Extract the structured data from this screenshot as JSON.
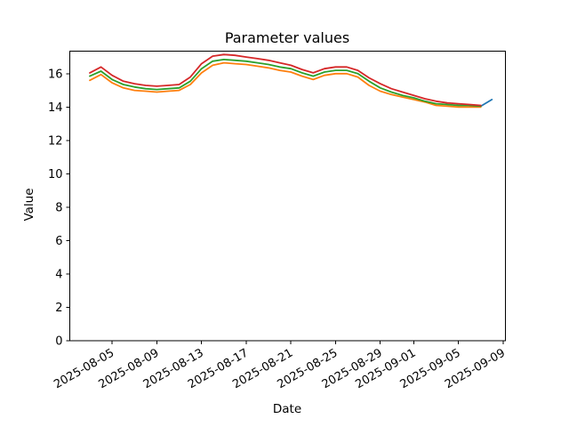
{
  "window": {
    "background": "#ffffff"
  },
  "chart_data": {
    "type": "line",
    "title": "Parameter values",
    "xlabel": "Date",
    "ylabel": "Value",
    "grid": false,
    "legend": null,
    "background_color": "#ffffff",
    "axis_color": "#000000",
    "x_axis": {
      "min": "2025-08-01T05:00:00Z",
      "max": "2025-09-09T05:00:00Z",
      "tick_labels": [
        "2025-08-05",
        "2025-08-09",
        "2025-08-13",
        "2025-08-17",
        "2025-08-21",
        "2025-08-25",
        "2025-08-29",
        "2025-09-01",
        "2025-09-05",
        "2025-09-09"
      ],
      "tick_label_rotation_deg": 30
    },
    "y_axis": {
      "min": 0,
      "max": 17.35,
      "ticks": [
        0,
        2,
        4,
        6,
        8,
        10,
        12,
        14,
        16
      ]
    },
    "x_main": [
      "2025-08-03",
      "2025-08-04",
      "2025-08-05",
      "2025-08-06",
      "2025-08-07",
      "2025-08-08",
      "2025-08-09",
      "2025-08-10",
      "2025-08-11",
      "2025-08-12",
      "2025-08-13",
      "2025-08-14",
      "2025-08-15",
      "2025-08-16",
      "2025-08-17",
      "2025-08-18",
      "2025-08-19",
      "2025-08-20",
      "2025-08-21",
      "2025-08-22",
      "2025-08-23",
      "2025-08-24",
      "2025-08-25",
      "2025-08-26",
      "2025-08-27",
      "2025-08-28",
      "2025-08-29",
      "2025-08-30",
      "2025-08-31",
      "2025-09-01",
      "2025-09-02",
      "2025-09-03",
      "2025-09-04",
      "2025-09-05",
      "2025-09-06",
      "2025-09-07"
    ],
    "series": [
      {
        "name": "blue",
        "color": "#1f77b4",
        "x": [
          "2025-09-06",
          "2025-09-07",
          "2025-09-08"
        ],
        "y": [
          14.1,
          14.05,
          14.45
        ]
      },
      {
        "name": "orange",
        "color": "#ff7f0e",
        "y": [
          15.6,
          15.95,
          15.45,
          15.15,
          15.0,
          14.95,
          14.9,
          14.95,
          15.0,
          15.35,
          16.05,
          16.5,
          16.65,
          16.6,
          16.55,
          16.45,
          16.35,
          16.2,
          16.1,
          15.85,
          15.65,
          15.9,
          16.0,
          16.0,
          15.8,
          15.3,
          14.95,
          14.75,
          14.6,
          14.45,
          14.3,
          14.1,
          14.05,
          14.0,
          14.0,
          14.0
        ]
      },
      {
        "name": "green",
        "color": "#2ca02c",
        "y": [
          15.85,
          16.15,
          15.65,
          15.35,
          15.2,
          15.1,
          15.05,
          15.1,
          15.15,
          15.55,
          16.3,
          16.75,
          16.85,
          16.8,
          16.75,
          16.65,
          16.55,
          16.4,
          16.3,
          16.05,
          15.85,
          16.1,
          16.2,
          16.2,
          16.0,
          15.55,
          15.15,
          14.9,
          14.7,
          14.55,
          14.35,
          14.2,
          14.15,
          14.1,
          14.1,
          14.05
        ]
      },
      {
        "name": "red",
        "color": "#d62728",
        "y": [
          16.05,
          16.4,
          15.9,
          15.55,
          15.4,
          15.3,
          15.25,
          15.3,
          15.35,
          15.8,
          16.6,
          17.05,
          17.15,
          17.1,
          17.0,
          16.9,
          16.8,
          16.65,
          16.5,
          16.25,
          16.05,
          16.3,
          16.4,
          16.4,
          16.2,
          15.75,
          15.4,
          15.1,
          14.9,
          14.7,
          14.5,
          14.35,
          14.25,
          14.2,
          14.15,
          14.1
        ]
      }
    ]
  }
}
